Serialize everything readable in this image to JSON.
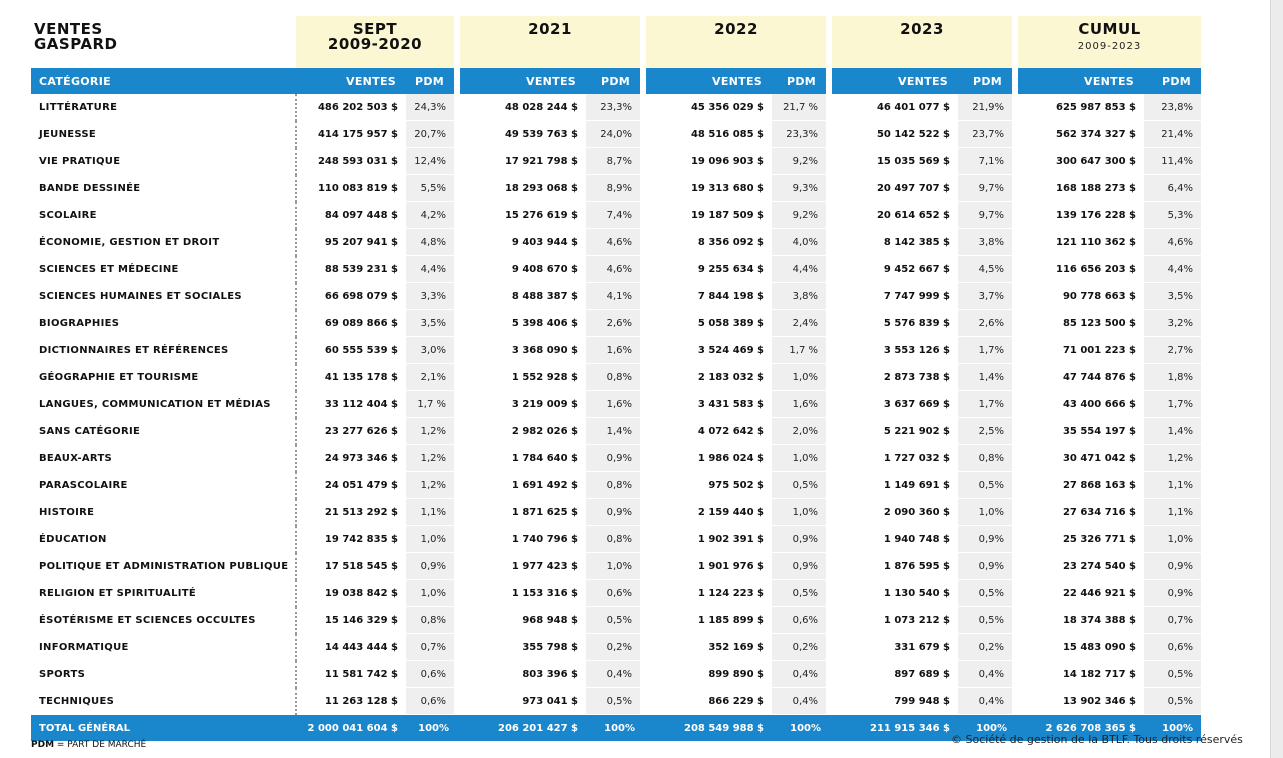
{
  "header": {
    "title_line1": "VENTES",
    "title_line2": "GASPARD",
    "periods": [
      {
        "line1": "SEPT",
        "line2": "2009-2020",
        "sub": ""
      },
      {
        "line1": "2021",
        "line2": "",
        "sub": ""
      },
      {
        "line1": "2022",
        "line2": "",
        "sub": ""
      },
      {
        "line1": "2023",
        "line2": "",
        "sub": ""
      },
      {
        "line1": "CUMUL",
        "line2": "",
        "sub": "2009-2023"
      }
    ]
  },
  "subheader": {
    "category": "CATÉGORIE",
    "sales": "VENTES",
    "share": "PDM"
  },
  "rows": [
    {
      "cat": "LITTÉRATURE",
      "v": [
        "486 202 503 $",
        "48 028 244 $",
        "45 356 029 $",
        "46 401 077 $",
        "625 987 853 $"
      ],
      "p": [
        "24,3%",
        "23,3%",
        "21,7 %",
        "21,9%",
        "23,8%"
      ]
    },
    {
      "cat": "JEUNESSE",
      "v": [
        "414 175 957 $",
        "49 539 763 $",
        "48 516 085 $",
        "50 142 522 $",
        "562 374 327 $"
      ],
      "p": [
        "20,7%",
        "24,0%",
        "23,3%",
        "23,7%",
        "21,4%"
      ]
    },
    {
      "cat": "VIE PRATIQUE",
      "v": [
        "248 593 031 $",
        "17 921 798 $",
        "19 096 903 $",
        "15 035 569 $",
        "300 647 300 $"
      ],
      "p": [
        "12,4%",
        "8,7%",
        "9,2%",
        "7,1%",
        "11,4%"
      ]
    },
    {
      "cat": "BANDE DESSINÉE",
      "v": [
        "110 083 819 $",
        "18 293 068 $",
        "19 313 680 $",
        "20 497 707 $",
        "168 188 273 $"
      ],
      "p": [
        "5,5%",
        "8,9%",
        "9,3%",
        "9,7%",
        "6,4%"
      ]
    },
    {
      "cat": "SCOLAIRE",
      "v": [
        "84 097 448 $",
        "15 276 619 $",
        "19 187 509 $",
        "20 614 652 $",
        "139 176 228 $"
      ],
      "p": [
        "4,2%",
        "7,4%",
        "9,2%",
        "9,7%",
        "5,3%"
      ]
    },
    {
      "cat": "ÉCONOMIE, GESTION ET DROIT",
      "v": [
        "95 207 941 $",
        "9 403 944 $",
        "8 356 092 $",
        "8 142 385 $",
        "121 110 362 $"
      ],
      "p": [
        "4,8%",
        "4,6%",
        "4,0%",
        "3,8%",
        "4,6%"
      ]
    },
    {
      "cat": "SCIENCES ET MÉDECINE",
      "v": [
        "88 539 231 $",
        "9 408 670 $",
        "9 255 634 $",
        "9 452 667 $",
        "116 656 203 $"
      ],
      "p": [
        "4,4%",
        "4,6%",
        "4,4%",
        "4,5%",
        "4,4%"
      ]
    },
    {
      "cat": "SCIENCES HUMAINES ET SOCIALES",
      "v": [
        "66 698 079 $",
        "8 488 387 $",
        "7 844 198 $",
        "7 747 999 $",
        "90 778 663 $"
      ],
      "p": [
        "3,3%",
        "4,1%",
        "3,8%",
        "3,7%",
        "3,5%"
      ]
    },
    {
      "cat": "BIOGRAPHIES",
      "v": [
        "69 089 866 $",
        "5 398 406 $",
        "5 058 389 $",
        "5 576 839 $",
        "85 123 500 $"
      ],
      "p": [
        "3,5%",
        "2,6%",
        "2,4%",
        "2,6%",
        "3,2%"
      ]
    },
    {
      "cat": "DICTIONNAIRES ET RÉFÉRENCES",
      "v": [
        "60 555 539 $",
        "3 368 090 $",
        "3 524 469 $",
        "3 553 126 $",
        "71 001 223 $"
      ],
      "p": [
        "3,0%",
        "1,6%",
        "1,7 %",
        "1,7%",
        "2,7%"
      ]
    },
    {
      "cat": "GÉOGRAPHIE ET TOURISME",
      "v": [
        "41 135 178 $",
        "1 552 928 $",
        "2 183 032 $",
        "2 873 738 $",
        "47 744 876 $"
      ],
      "p": [
        "2,1%",
        "0,8%",
        "1,0%",
        "1,4%",
        "1,8%"
      ]
    },
    {
      "cat": "LANGUES, COMMUNICATION ET MÉDIAS",
      "v": [
        "33 112 404 $",
        "3 219 009 $",
        "3 431 583 $",
        "3 637 669 $",
        "43 400 666 $"
      ],
      "p": [
        "1,7 %",
        "1,6%",
        "1,6%",
        "1,7%",
        "1,7%"
      ]
    },
    {
      "cat": "SANS CATÉGORIE",
      "v": [
        "23 277 626 $",
        "2 982 026 $",
        "4 072 642 $",
        "5 221 902 $",
        "35 554 197 $"
      ],
      "p": [
        "1,2%",
        "1,4%",
        "2,0%",
        "2,5%",
        "1,4%"
      ]
    },
    {
      "cat": "BEAUX-ARTS",
      "v": [
        "24 973 346 $",
        "1 784 640 $",
        "1 986 024 $",
        "1 727 032 $",
        "30 471 042 $"
      ],
      "p": [
        "1,2%",
        "0,9%",
        "1,0%",
        "0,8%",
        "1,2%"
      ]
    },
    {
      "cat": "PARASCOLAIRE",
      "v": [
        "24 051 479 $",
        "1 691 492 $",
        "975 502 $",
        "1 149 691 $",
        "27 868 163 $"
      ],
      "p": [
        "1,2%",
        "0,8%",
        "0,5%",
        "0,5%",
        "1,1%"
      ]
    },
    {
      "cat": "HISTOIRE",
      "v": [
        "21 513 292 $",
        "1 871 625 $",
        "2 159 440 $",
        "2 090 360 $",
        "27 634 716 $"
      ],
      "p": [
        "1,1%",
        "0,9%",
        "1,0%",
        "1,0%",
        "1,1%"
      ]
    },
    {
      "cat": "ÉDUCATION",
      "v": [
        "19 742 835 $",
        "1 740 796 $",
        "1 902 391 $",
        "1 940 748 $",
        "25 326 771 $"
      ],
      "p": [
        "1,0%",
        "0,8%",
        "0,9%",
        "0,9%",
        "1,0%"
      ]
    },
    {
      "cat": "POLITIQUE ET ADMINISTRATION PUBLIQUE",
      "v": [
        "17 518 545 $",
        "1 977 423 $",
        "1 901 976 $",
        "1 876 595 $",
        "23 274 540 $"
      ],
      "p": [
        "0,9%",
        "1,0%",
        "0,9%",
        "0,9%",
        "0,9%"
      ]
    },
    {
      "cat": "RELIGION ET SPIRITUALITÉ",
      "v": [
        "19 038 842 $",
        "1 153 316 $",
        "1 124 223 $",
        "1 130 540 $",
        "22 446 921 $"
      ],
      "p": [
        "1,0%",
        "0,6%",
        "0,5%",
        "0,5%",
        "0,9%"
      ]
    },
    {
      "cat": "ÉSOTÉRISME ET SCIENCES OCCULTES",
      "v": [
        "15 146 329 $",
        "968 948 $",
        "1 185 899 $",
        "1 073 212 $",
        "18 374 388 $"
      ],
      "p": [
        "0,8%",
        "0,5%",
        "0,6%",
        "0,5%",
        "0,7%"
      ]
    },
    {
      "cat": "INFORMATIQUE",
      "v": [
        "14 443 444 $",
        "355 798 $",
        "352 169 $",
        "331 679 $",
        "15 483 090 $"
      ],
      "p": [
        "0,7%",
        "0,2%",
        "0,2%",
        "0,2%",
        "0,6%"
      ]
    },
    {
      "cat": "SPORTS",
      "v": [
        "11 581 742 $",
        "803 396 $",
        "899 890 $",
        "897 689 $",
        "14 182 717 $"
      ],
      "p": [
        "0,6%",
        "0,4%",
        "0,4%",
        "0,4%",
        "0,5%"
      ]
    },
    {
      "cat": "TECHNIQUES",
      "v": [
        "11 263 128 $",
        "973 041 $",
        "866 229 $",
        "799 948 $",
        "13 902 346 $"
      ],
      "p": [
        "0,6%",
        "0,5%",
        "0,4%",
        "0,4%",
        "0,5%"
      ]
    }
  ],
  "total": {
    "cat": "TOTAL GÉNÉRAL",
    "v": [
      "2 000 041 604 $",
      "206 201 427 $",
      "208 549 988 $",
      "211 915 346 $",
      "2 626 708 365 $"
    ],
    "p": [
      "100%",
      "100%",
      "100%",
      "100%",
      "100%"
    ]
  },
  "footnote": {
    "abbr": "PDM",
    "text": " = PART DE MARCHÉ"
  },
  "copyright": "© Société de gestion de la BTLF. Tous droits réservés",
  "colors": {
    "accent_blue": "#1a86cc",
    "header_bg": "#faf7d2",
    "share_bg": "#efefef"
  }
}
